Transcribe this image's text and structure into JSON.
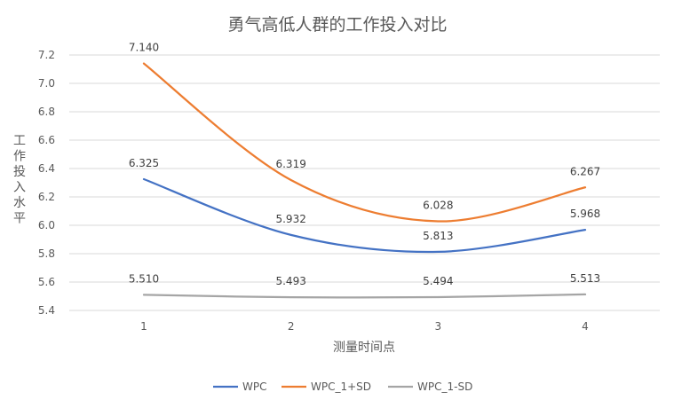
{
  "chart_data": {
    "type": "line",
    "title": "勇气高低人群的工作投入对比",
    "xlabel": "测量时间点",
    "ylabel": "工作投入水平",
    "x": [
      1,
      2,
      3,
      4
    ],
    "categories": [
      "1",
      "2",
      "3",
      "4"
    ],
    "ylim": [
      5.4,
      7.2
    ],
    "yticks": [
      "5.4",
      "5.6",
      "5.8",
      "6.0",
      "6.2",
      "6.4",
      "6.6",
      "6.8",
      "7.0",
      "7.2"
    ],
    "grid": true,
    "legend_position": "bottom",
    "series": [
      {
        "name": "WPC",
        "color": "#4472C4",
        "values": [
          6.325,
          5.932,
          5.813,
          5.968
        ],
        "labels": [
          "6.325",
          "5.932",
          "5.813",
          "5.968"
        ]
      },
      {
        "name": "WPC_1+SD",
        "color": "#ED7D31",
        "values": [
          7.14,
          6.319,
          6.028,
          6.267
        ],
        "labels": [
          "7.140",
          "6.319",
          "6.028",
          "6.267"
        ]
      },
      {
        "name": "WPC_1-SD",
        "color": "#A5A5A5",
        "values": [
          5.51,
          5.493,
          5.494,
          5.513
        ],
        "labels": [
          "5.510",
          "5.493",
          "5.494",
          "5.513"
        ]
      }
    ]
  }
}
